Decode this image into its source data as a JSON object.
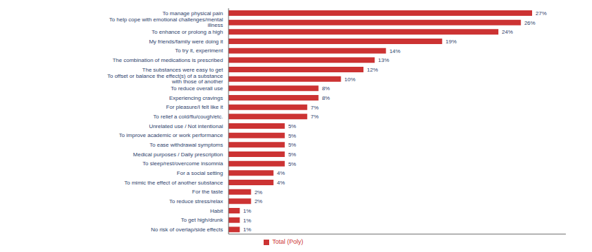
{
  "chart_data": {
    "type": "bar",
    "orientation": "horizontal",
    "categories": [
      "No risk of overlap/side effects",
      "To get high/drunk",
      "Habit",
      "To reduce stress/relax",
      "For the taste",
      "To mimic the effect of another substance",
      "For a social setting",
      "To sleep/rest/overcome insomnia",
      "Medical purposes / Daily prescription",
      "To ease withdrawal symptoms",
      "To improve academic or work performance",
      "Unrelated use / Not intentional",
      "To relief a cold/flu/cough/etc.",
      "For pleasure/I felt like it",
      "Experiencing cravings",
      "To reduce overall use",
      "To offset or balance the effect(s) of a substance with those of another",
      "The substances were easy to get",
      "The combination of medications is prescribed",
      "To try it, experiment",
      "My friends/family were doing it",
      "To enhance or prolong a high",
      "To help cope with emotional challenges/mental illness",
      "To manage physical pain"
    ],
    "series": [
      {
        "name": "Total (Poly)",
        "color": "#cc3333",
        "values": [
          1,
          1,
          1,
          2,
          2,
          4,
          4,
          5,
          5,
          5,
          5,
          5,
          7,
          7,
          8,
          8,
          10,
          12,
          13,
          14,
          19,
          24,
          26,
          27
        ],
        "value_labels": [
          "1%",
          "1%",
          "1%",
          "2%",
          "2%",
          "4%",
          "4%",
          "5%",
          "5%",
          "5%",
          "5%",
          "5%",
          "7%",
          "7%",
          "8%",
          "8%",
          "10%",
          "12%",
          "13%",
          "14%",
          "19%",
          "24%",
          "26%",
          "27%"
        ]
      }
    ],
    "xlim": [
      0,
      30
    ],
    "grid": false,
    "legend": "bottom",
    "data_labels": true,
    "tick_labels": "y"
  }
}
